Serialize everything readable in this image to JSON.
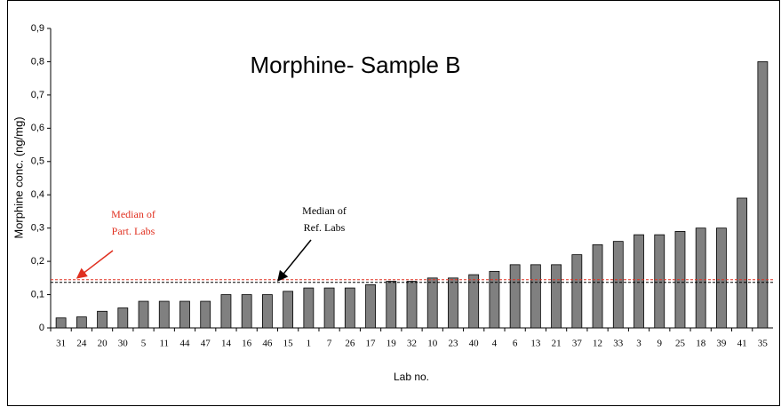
{
  "chart_data": {
    "type": "bar",
    "title": "Morphine- Sample B",
    "y_label": "Morphine conc. (ng/mg)",
    "x_label": "Lab no.",
    "categories": [
      "31",
      "24",
      "20",
      "30",
      "5",
      "11",
      "44",
      "47",
      "14",
      "16",
      "46",
      "15",
      "1",
      "7",
      "26",
      "17",
      "19",
      "32",
      "10",
      "23",
      "40",
      "4",
      "6",
      "13",
      "21",
      "37",
      "12",
      "33",
      "3",
      "9",
      "25",
      "18",
      "39",
      "41",
      "35"
    ],
    "values": [
      0.03,
      0.033,
      0.05,
      0.06,
      0.08,
      0.08,
      0.08,
      0.08,
      0.1,
      0.1,
      0.1,
      0.11,
      0.12,
      0.12,
      0.12,
      0.13,
      0.14,
      0.14,
      0.15,
      0.15,
      0.16,
      0.17,
      0.19,
      0.19,
      0.19,
      0.22,
      0.25,
      0.26,
      0.28,
      0.28,
      0.29,
      0.3,
      0.3,
      0.39,
      0.8
    ],
    "color": "#808080",
    "ylim": [
      0,
      0.9
    ],
    "yticks": [
      0,
      {
        "value": 0.1,
        "label": "0,1"
      },
      {
        "value": 0.2,
        "label": "0,2"
      },
      {
        "value": 0.3,
        "label": "0,3"
      },
      {
        "value": 0.4,
        "label": "0,4"
      },
      {
        "value": 0.5,
        "label": "0,5"
      },
      {
        "value": 0.6,
        "label": "0,6"
      },
      {
        "value": 0.7,
        "label": "0,7"
      },
      {
        "value": 0.8,
        "label": "0,8"
      },
      {
        "value": 0.9,
        "label": "0,9"
      }
    ],
    "medians": [
      {
        "label_lines": [
          "Median of",
          "Part. Labs"
        ],
        "value": 0.145,
        "color": "#e03020"
      },
      {
        "label_lines": [
          "Median of",
          "Ref. Labs"
        ],
        "value": 0.137,
        "color": "#000000"
      }
    ]
  }
}
